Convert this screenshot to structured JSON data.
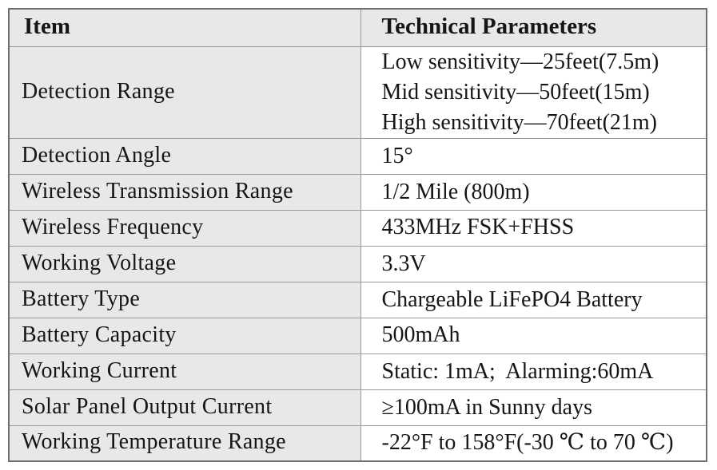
{
  "colors": {
    "header_and_item_bg": "#e8e8e8",
    "value_bg": "#ffffff",
    "outer_border": "#6f6f6f",
    "inner_border": "#9a9a9a",
    "text": "#161616"
  },
  "table": {
    "columns": [
      "Item",
      "Technical Parameters"
    ],
    "rows": [
      {
        "item": "Detection Range",
        "value": "Low sensitivity—25feet(7.5m)\nMid sensitivity—50feet(15m)\nHigh sensitivity—70feet(21m)"
      },
      {
        "item": "Detection Angle",
        "value": "15°"
      },
      {
        "item": "Wireless Transmission Range",
        "value": "1/2 Mile (800m)"
      },
      {
        "item": "Wireless Frequency",
        "value": "433MHz FSK+FHSS"
      },
      {
        "item": "Working Voltage",
        "value": "3.3V"
      },
      {
        "item": "Battery Type",
        "value": "Chargeable LiFePO4 Battery"
      },
      {
        "item": "Battery Capacity",
        "value": "500mAh"
      },
      {
        "item": "Working Current",
        "value": "Static: 1mA;  Alarming:60mA"
      },
      {
        "item": "Solar Panel Output Current",
        "value": "≥100mA in Sunny days"
      },
      {
        "item": "Working Temperature Range",
        "value": "-22°F to 158°F(-30 ℃ to 70 ℃)"
      }
    ]
  }
}
